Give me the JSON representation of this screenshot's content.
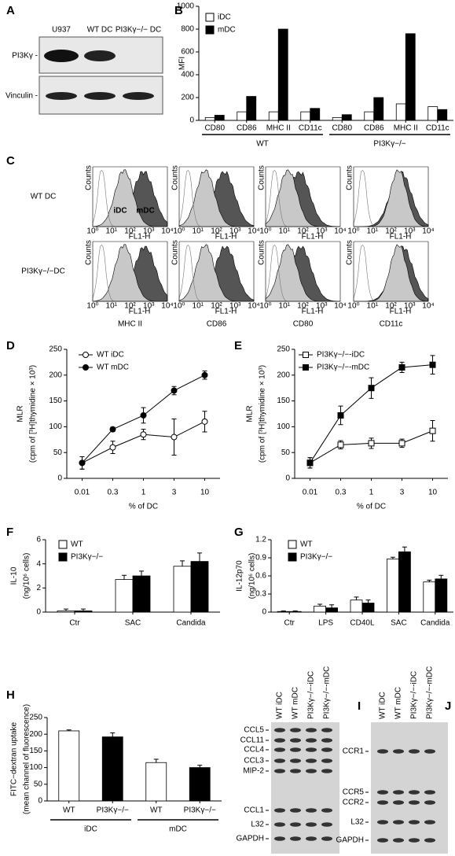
{
  "panel_labels": [
    "A",
    "B",
    "C",
    "D",
    "E",
    "F",
    "G",
    "H",
    "I",
    "J"
  ],
  "blot_a": {
    "lanes": [
      "U937",
      "WT DC",
      "PI3Kγ−/− DC"
    ],
    "rows": [
      "PI3Kγ -",
      "Vinculin -"
    ]
  },
  "flow_c": {
    "rows": [
      "WT DC",
      "PI3Kγ−/−DC"
    ],
    "markers": [
      "MHC II",
      "CD86",
      "CD80",
      "CD11c"
    ],
    "annotations": [
      "iDC",
      "mDC"
    ],
    "x_axis_label": "FL1-H",
    "y_axis_label": "Counts",
    "xticks": [
      "10⁰",
      "10¹",
      "10²",
      "10³",
      "10⁴"
    ]
  },
  "gel_i": {
    "lanes": [
      "WT iDC",
      "WT mDC",
      "PI3Kγ−/−-iDC",
      "PI3Kγ−/−-mDC"
    ],
    "bands": [
      "CCL5",
      "CCL11",
      "CCL4",
      "CCL3",
      "MIP-2",
      "CCL1",
      "L32",
      "GAPDH"
    ]
  },
  "gel_j": {
    "lanes": [
      "WT iDC",
      "WT mDC",
      "PI3Kγ−/−-iDC",
      "PI3Kγ−/−-mDC"
    ],
    "bands": [
      "CCR1",
      "CCR5",
      "CCR2",
      "L32",
      "GAPDH"
    ]
  },
  "chart_data": [
    {
      "type": "bar",
      "ylabel": "MFI",
      "categories": [
        "CD80",
        "CD86",
        "MHC II",
        "CD11c",
        "CD80",
        "CD86",
        "MHC II",
        "CD11c"
      ],
      "groups": [
        "WT",
        "PI3Kγ−/−"
      ],
      "series": [
        {
          "name": "iDC",
          "color": "#ffffff",
          "values": [
            25,
            75,
            75,
            75,
            25,
            75,
            145,
            120
          ]
        },
        {
          "name": "mDC",
          "color": "#000000",
          "values": [
            45,
            210,
            800,
            105,
            50,
            200,
            760,
            95
          ]
        }
      ],
      "ylim": [
        0,
        1000
      ],
      "yticks": [
        0,
        200,
        400,
        600,
        800,
        1000
      ]
    },
    {
      "type": "line",
      "ylabel": [
        "MLR",
        "(cpm of [³H]thymidine × 10³)"
      ],
      "xlabel": "% of DC",
      "categories": [
        "0.01",
        "0.3",
        "1",
        "3",
        "10"
      ],
      "series": [
        {
          "name": "WT iDC",
          "color": "#ffffff",
          "marker": "circle",
          "values": [
            30,
            60,
            85,
            80,
            110
          ],
          "errors": [
            12,
            12,
            10,
            35,
            20
          ]
        },
        {
          "name": "WT mDC",
          "color": "#000000",
          "marker": "circle",
          "values": [
            30,
            95,
            122,
            170,
            200
          ],
          "errors": [
            12,
            4,
            15,
            8,
            8
          ]
        }
      ],
      "ylim": [
        0,
        250
      ],
      "yticks": [
        0,
        50,
        100,
        150,
        200,
        250
      ]
    },
    {
      "type": "line",
      "ylabel": [
        "MLR",
        "(cpm of [³H]thymidine × 10³)"
      ],
      "xlabel": "% of DC",
      "categories": [
        "0.01",
        "0.3",
        "1",
        "3",
        "10"
      ],
      "series": [
        {
          "name": "PI3Kγ−/−-iDC",
          "color": "#ffffff",
          "marker": "square",
          "values": [
            30,
            65,
            68,
            68,
            92
          ],
          "errors": [
            10,
            8,
            10,
            8,
            20
          ]
        },
        {
          "name": "PI3Kγ−/−-mDC",
          "color": "#000000",
          "marker": "square",
          "values": [
            30,
            122,
            175,
            215,
            220
          ],
          "errors": [
            10,
            18,
            20,
            10,
            18
          ]
        }
      ],
      "ylim": [
        0,
        250
      ],
      "yticks": [
        0,
        50,
        100,
        150,
        200,
        250
      ]
    },
    {
      "type": "bar",
      "ylabel": [
        "IL-10",
        "(ng/10⁶ cells)"
      ],
      "categories": [
        "Ctr",
        "SAC",
        "Candida"
      ],
      "series": [
        {
          "name": "WT",
          "color": "#ffffff",
          "values": [
            0.1,
            2.7,
            3.8
          ],
          "errors": [
            0.15,
            0.35,
            0.45
          ]
        },
        {
          "name": "PI3Kγ−/−",
          "color": "#000000",
          "values": [
            0.1,
            3.0,
            4.2
          ],
          "errors": [
            0.15,
            0.4,
            0.7
          ]
        }
      ],
      "ylim": [
        0,
        6
      ],
      "yticks": [
        0,
        2,
        4,
        6
      ]
    },
    {
      "type": "bar",
      "ylabel": [
        "IL-12p70",
        "(ng/10⁶ cells)"
      ],
      "categories": [
        "Ctr",
        "LPS",
        "CD40L",
        "SAC",
        "Candida"
      ],
      "series": [
        {
          "name": "WT",
          "color": "#ffffff",
          "values": [
            0.01,
            0.1,
            0.2,
            0.88,
            0.5
          ],
          "errors": [
            0.01,
            0.03,
            0.05,
            0.03,
            0.03
          ]
        },
        {
          "name": "PI3Kγ−/−",
          "color": "#000000",
          "values": [
            0.01,
            0.07,
            0.15,
            1.0,
            0.55
          ],
          "errors": [
            0.01,
            0.05,
            0.05,
            0.08,
            0.06
          ]
        }
      ],
      "ylim": [
        0,
        1.2
      ],
      "yticks": [
        0,
        0.3,
        0.6,
        0.9,
        1.2
      ]
    },
    {
      "type": "bar",
      "ylabel": [
        "FITC−dextran uptake",
        "(mean channel of fluorescence)"
      ],
      "categories": [
        "WT",
        "PI3Kγ−/−",
        "WT",
        "PI3Kγ−/−"
      ],
      "groups": [
        "iDC",
        "mDC"
      ],
      "series": [
        {
          "colors": [
            "#ffffff",
            "#000000",
            "#ffffff",
            "#000000"
          ],
          "values": [
            210,
            192,
            115,
            100
          ],
          "errors": [
            3,
            12,
            10,
            7
          ]
        }
      ],
      "ylim": [
        0,
        250
      ],
      "yticks": [
        0,
        50,
        100,
        150,
        200,
        250
      ]
    }
  ]
}
